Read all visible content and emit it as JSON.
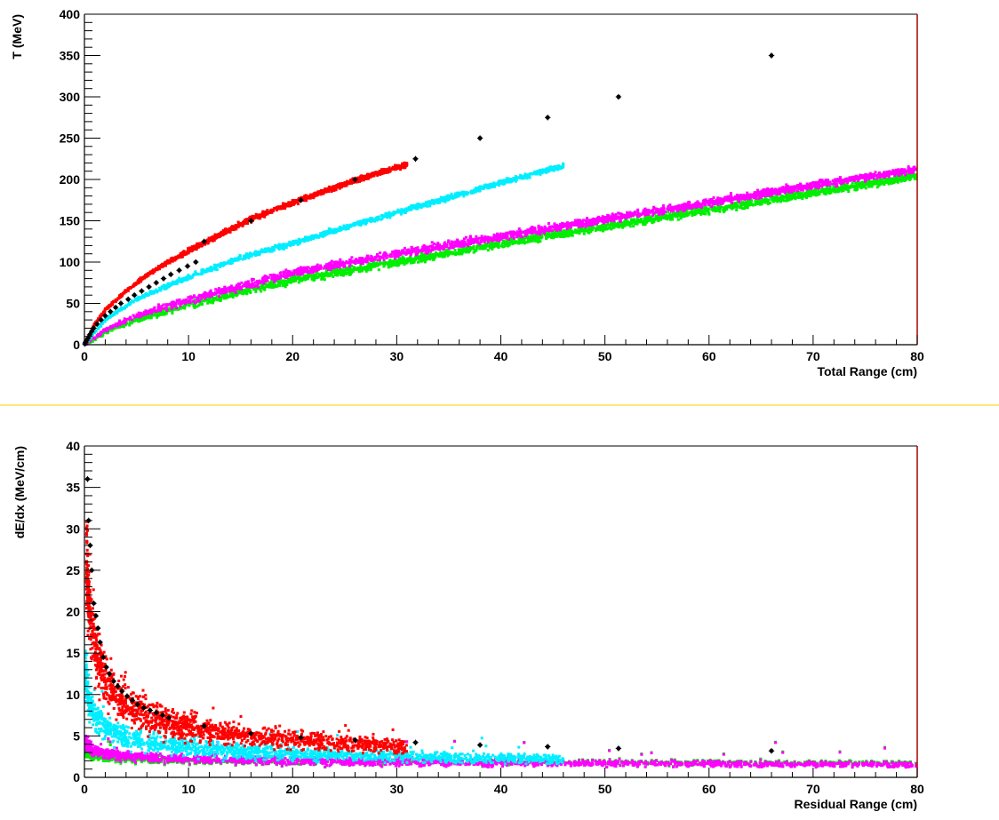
{
  "colors": {
    "proton": "#ff0000",
    "kaon": "#00eeff",
    "pion": "#ff00ff",
    "muon": "#00ee00",
    "reference": "#000000",
    "separator": "#ffe050",
    "frame_right": "#aa0000"
  },
  "chart_data": [
    {
      "type": "scatter",
      "title": "",
      "xlabel": "Total Range (cm)",
      "ylabel": "T (MeV)",
      "xlim": [
        0,
        80
      ],
      "ylim": [
        0,
        400
      ],
      "xticks": [
        0,
        10,
        20,
        30,
        40,
        50,
        60,
        70,
        80
      ],
      "yticks": [
        0,
        50,
        100,
        150,
        200,
        250,
        300,
        350,
        400
      ],
      "grid": false,
      "series": [
        {
          "color": "#ff0000",
          "x_range": [
            0,
            31
          ],
          "note_shape": "band",
          "points": [
            [
              0,
              0
            ],
            [
              1,
              25
            ],
            [
              2,
              42
            ],
            [
              4,
              65
            ],
            [
              6,
              84
            ],
            [
              8,
              100
            ],
            [
              12,
              127
            ],
            [
              16,
              152
            ],
            [
              20,
              172
            ],
            [
              24,
              190
            ],
            [
              28,
              207
            ],
            [
              31,
              218
            ]
          ]
        },
        {
          "color": "#00eeff",
          "x_range": [
            0,
            46
          ],
          "note_shape": "band",
          "points": [
            [
              0,
              0
            ],
            [
              2,
              30
            ],
            [
              5,
              55
            ],
            [
              10,
              82
            ],
            [
              15,
              105
            ],
            [
              20,
              123
            ],
            [
              25,
              142
            ],
            [
              30,
              160
            ],
            [
              35,
              178
            ],
            [
              40,
              196
            ],
            [
              44,
              210
            ],
            [
              46,
              216
            ]
          ]
        },
        {
          "color": "#ff00ff",
          "x_range": [
            0,
            80
          ],
          "note_shape": "band",
          "points": [
            [
              0,
              0
            ],
            [
              2,
              18
            ],
            [
              5,
              35
            ],
            [
              10,
              54
            ],
            [
              20,
              87
            ],
            [
              30,
              110
            ],
            [
              40,
              131
            ],
            [
              50,
              152
            ],
            [
              60,
              172
            ],
            [
              70,
              193
            ],
            [
              80,
              212
            ]
          ]
        },
        {
          "color": "#00ee00",
          "x_range": [
            0,
            80
          ],
          "note_shape": "band",
          "points": [
            [
              0,
              0
            ],
            [
              2,
              15
            ],
            [
              5,
              30
            ],
            [
              10,
              48
            ],
            [
              20,
              78
            ],
            [
              30,
              100
            ],
            [
              40,
              122
            ],
            [
              50,
              143
            ],
            [
              60,
              163
            ],
            [
              70,
              184
            ],
            [
              80,
              204
            ]
          ]
        }
      ],
      "reference_points": [
        [
          0.05,
          1
        ],
        [
          0.1,
          3
        ],
        [
          0.2,
          5
        ],
        [
          0.35,
          8
        ],
        [
          0.5,
          12
        ],
        [
          0.7,
          16
        ],
        [
          0.9,
          20
        ],
        [
          1.2,
          25
        ],
        [
          1.6,
          30
        ],
        [
          2.0,
          35
        ],
        [
          2.5,
          40
        ],
        [
          3.0,
          45
        ],
        [
          3.5,
          50
        ],
        [
          4.2,
          55
        ],
        [
          4.8,
          60
        ],
        [
          5.5,
          65
        ],
        [
          6.2,
          70
        ],
        [
          6.9,
          75
        ],
        [
          7.6,
          80
        ],
        [
          8.3,
          85
        ],
        [
          9.1,
          90
        ],
        [
          9.9,
          95
        ],
        [
          10.7,
          100
        ],
        [
          11.5,
          125
        ],
        [
          16.0,
          150
        ],
        [
          20.8,
          175
        ],
        [
          26.0,
          200
        ],
        [
          31.8,
          225
        ],
        [
          38.0,
          250
        ],
        [
          44.5,
          275
        ],
        [
          51.3,
          300
        ],
        [
          66.0,
          350
        ]
      ]
    },
    {
      "type": "scatter",
      "title": "",
      "xlabel": "Residual Range (cm)",
      "ylabel": "dE/dx (MeV/cm)",
      "xlim": [
        0,
        80
      ],
      "ylim": [
        0,
        40
      ],
      "xticks": [
        0,
        10,
        20,
        30,
        40,
        50,
        60,
        70,
        80
      ],
      "yticks": [
        0,
        5,
        10,
        15,
        20,
        25,
        30,
        35,
        40
      ],
      "grid": false,
      "series": [
        {
          "color": "#ff0000",
          "x_range": [
            0.2,
            31
          ]
        },
        {
          "color": "#00eeff",
          "x_range": [
            0.1,
            46
          ]
        },
        {
          "color": "#ff00ff",
          "x_range": [
            0.1,
            80
          ]
        },
        {
          "color": "#00ee00",
          "x_range": [
            0.1,
            80
          ]
        }
      ],
      "reference_points": [
        [
          0.3,
          36
        ],
        [
          0.4,
          31
        ],
        [
          0.55,
          28
        ],
        [
          0.7,
          25
        ],
        [
          0.9,
          21
        ],
        [
          1.1,
          19.5
        ],
        [
          1.3,
          18
        ],
        [
          1.5,
          16.3
        ],
        [
          1.8,
          14.5
        ],
        [
          2.1,
          13.3
        ],
        [
          2.4,
          12.5
        ],
        [
          2.8,
          11.6
        ],
        [
          3.2,
          11
        ],
        [
          3.6,
          10.4
        ],
        [
          4.1,
          9.8
        ],
        [
          4.6,
          9.3
        ],
        [
          5.1,
          8.8
        ],
        [
          5.7,
          8.4
        ],
        [
          6.3,
          8.1
        ],
        [
          6.9,
          7.8
        ],
        [
          7.5,
          7.5
        ],
        [
          8.1,
          7.2
        ],
        [
          11.5,
          6.2
        ],
        [
          16.0,
          5.3
        ],
        [
          20.8,
          4.8
        ],
        [
          26.0,
          4.5
        ],
        [
          31.8,
          4.2
        ],
        [
          38.0,
          3.9
        ],
        [
          44.5,
          3.7
        ],
        [
          51.3,
          3.5
        ],
        [
          66.0,
          3.2
        ]
      ]
    }
  ]
}
